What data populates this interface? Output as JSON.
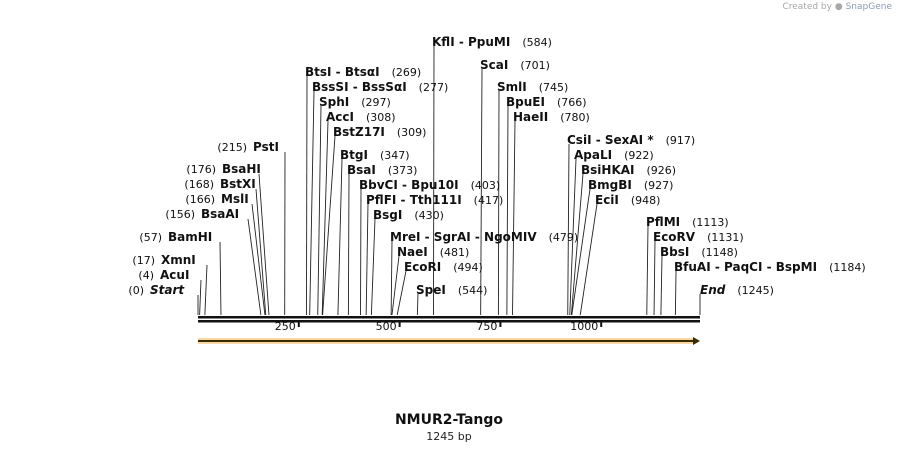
{
  "credit": {
    "prefix": "Created by",
    "brand": "SnapGene"
  },
  "sequence": {
    "name": "NMUR2-Tango",
    "length_label": "1245 bp",
    "length": 1245
  },
  "ruler": {
    "ticks": [
      250,
      500,
      750,
      1000
    ]
  },
  "feature": {
    "name": "orf-arrow",
    "start": 1,
    "end": 1245,
    "color": "#f0a830"
  },
  "labels": [
    {
      "type": "start",
      "pos": 0,
      "pos_label": "(0)",
      "text": "Start",
      "side": "right"
    },
    {
      "type": "site",
      "pos": 4,
      "pos_label": "(4)",
      "text": "AcuI",
      "side": "right"
    },
    {
      "type": "site",
      "pos": 17,
      "pos_label": "(17)",
      "text": "XmnI",
      "side": "right"
    },
    {
      "type": "site",
      "pos": 57,
      "pos_label": "(57)",
      "text": "BamHI",
      "side": "right"
    },
    {
      "type": "site",
      "pos": 156,
      "pos_label": "(156)",
      "text": "BsaAI",
      "side": "right"
    },
    {
      "type": "site",
      "pos": 166,
      "pos_label": "(166)",
      "text": "MslI",
      "side": "right"
    },
    {
      "type": "site",
      "pos": 168,
      "pos_label": "(168)",
      "text": "BstXI",
      "side": "right"
    },
    {
      "type": "site",
      "pos": 176,
      "pos_label": "(176)",
      "text": "BsaHI",
      "side": "right"
    },
    {
      "type": "site",
      "pos": 215,
      "pos_label": "(215)",
      "text": "PstI",
      "side": "right"
    },
    {
      "type": "site",
      "pos": 269,
      "pos_label": "(269)",
      "text": "BtsI  -  BtsαI",
      "side": "left"
    },
    {
      "type": "site",
      "pos": 277,
      "pos_label": "(277)",
      "text": "BssSI  -  BssSαI",
      "side": "left"
    },
    {
      "type": "site",
      "pos": 297,
      "pos_label": "(297)",
      "text": "SphI",
      "side": "left"
    },
    {
      "type": "site",
      "pos": 308,
      "pos_label": "(308)",
      "text": "AccI",
      "side": "left"
    },
    {
      "type": "site",
      "pos": 309,
      "pos_label": "(309)",
      "text": "BstZ17I",
      "side": "left"
    },
    {
      "type": "site",
      "pos": 347,
      "pos_label": "(347)",
      "text": "BtgI",
      "side": "left"
    },
    {
      "type": "site",
      "pos": 373,
      "pos_label": "(373)",
      "text": "BsaI",
      "side": "left"
    },
    {
      "type": "site",
      "pos": 403,
      "pos_label": "(403)",
      "text": "BbvCI  -  Bpu10I",
      "side": "left"
    },
    {
      "type": "site",
      "pos": 417,
      "pos_label": "(417)",
      "text": "PflFI  -  Tth111I",
      "side": "left"
    },
    {
      "type": "site",
      "pos": 430,
      "pos_label": "(430)",
      "text": "BsgI",
      "side": "left"
    },
    {
      "type": "site",
      "pos": 479,
      "pos_label": "(479)",
      "text": "MreI  -  SgrAI  -  NgoMIV",
      "side": "left"
    },
    {
      "type": "site",
      "pos": 481,
      "pos_label": "(481)",
      "text": "NaeI",
      "side": "left"
    },
    {
      "type": "site",
      "pos": 494,
      "pos_label": "(494)",
      "text": "EcoRI",
      "side": "left"
    },
    {
      "type": "site",
      "pos": 544,
      "pos_label": "(544)",
      "text": "SpeI",
      "side": "left"
    },
    {
      "type": "site",
      "pos": 584,
      "pos_label": "(584)",
      "text": "KflI  -  PpuMI",
      "side": "left"
    },
    {
      "type": "site",
      "pos": 701,
      "pos_label": "(701)",
      "text": "ScaI",
      "side": "left"
    },
    {
      "type": "site",
      "pos": 745,
      "pos_label": "(745)",
      "text": "SmlI",
      "side": "left"
    },
    {
      "type": "site",
      "pos": 766,
      "pos_label": "(766)",
      "text": "BpuEI",
      "side": "left"
    },
    {
      "type": "site",
      "pos": 780,
      "pos_label": "(780)",
      "text": "HaeII",
      "side": "left"
    },
    {
      "type": "site",
      "pos": 917,
      "pos_label": "(917)",
      "text": "CsiI  -  SexAI *",
      "side": "left"
    },
    {
      "type": "site",
      "pos": 922,
      "pos_label": "(922)",
      "text": "ApaLI",
      "side": "left"
    },
    {
      "type": "site",
      "pos": 926,
      "pos_label": "(926)",
      "text": "BsiHKAI",
      "side": "left"
    },
    {
      "type": "site",
      "pos": 927,
      "pos_label": "(927)",
      "text": "BmgBI",
      "side": "left"
    },
    {
      "type": "site",
      "pos": 948,
      "pos_label": "(948)",
      "text": "EciI",
      "side": "left"
    },
    {
      "type": "site",
      "pos": 1113,
      "pos_label": "(1113)",
      "text": "PflMI",
      "side": "left"
    },
    {
      "type": "site",
      "pos": 1131,
      "pos_label": "(1131)",
      "text": "EcoRV",
      "side": "left"
    },
    {
      "type": "site",
      "pos": 1148,
      "pos_label": "(1148)",
      "text": "BbsI",
      "side": "left"
    },
    {
      "type": "site",
      "pos": 1184,
      "pos_label": "(1184)",
      "text": "BfuAI  -  PaqCI  -  BspMI",
      "side": "left"
    },
    {
      "type": "end",
      "pos": 1245,
      "pos_label": "(1245)",
      "text": "End",
      "side": "left"
    }
  ]
}
